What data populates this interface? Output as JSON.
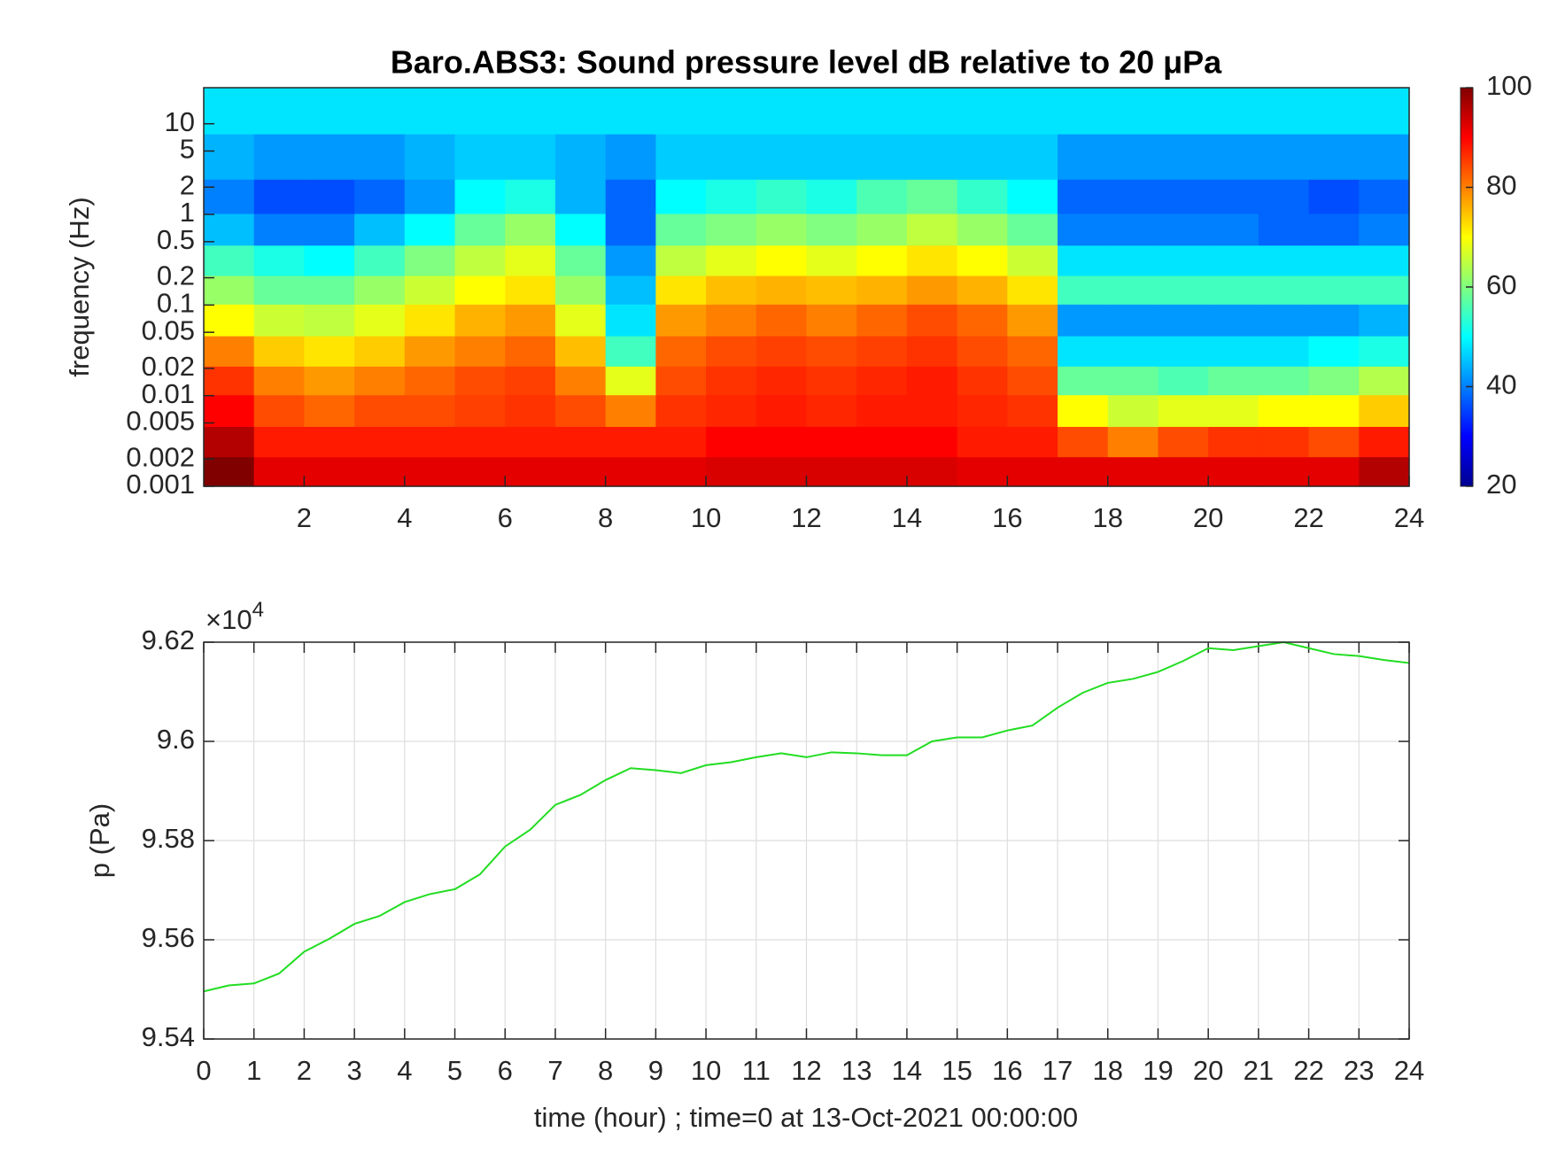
{
  "chart_data": [
    {
      "type": "heatmap",
      "title": "Baro.ABS3: Sound pressure level dB relative to 20 μPa",
      "y_label": "frequency (Hz)",
      "x": [
        0.5,
        1.5,
        2.5,
        3.5,
        4.5,
        5.5,
        6.5,
        7.5,
        8.5,
        9.5,
        10.5,
        11.5,
        12.5,
        13.5,
        14.5,
        15.5,
        16.5,
        17.5,
        18.5,
        19.5,
        20.5,
        21.5,
        22.5,
        23.5
      ],
      "y": [
        0.0015,
        0.003,
        0.007,
        0.015,
        0.03,
        0.07,
        0.15,
        0.3,
        0.7,
        1.5,
        4,
        15
      ],
      "z": [
        [
          100,
          92,
          92,
          92,
          92,
          92,
          92,
          92,
          92,
          92,
          93,
          93,
          93,
          93,
          93,
          92,
          92,
          92,
          92,
          92,
          92,
          92,
          92,
          96
        ],
        [
          96,
          88,
          88,
          88,
          88,
          88,
          88,
          88,
          88,
          88,
          90,
          90,
          90,
          90,
          90,
          88,
          88,
          84,
          80,
          84,
          86,
          86,
          84,
          88
        ],
        [
          90,
          84,
          82,
          84,
          84,
          85,
          86,
          84,
          80,
          86,
          87,
          88,
          87,
          88,
          88,
          87,
          86,
          70,
          66,
          68,
          68,
          70,
          70,
          74
        ],
        [
          86,
          80,
          78,
          80,
          82,
          84,
          85,
          80,
          68,
          84,
          86,
          87,
          86,
          87,
          88,
          86,
          84,
          58,
          58,
          56,
          58,
          58,
          60,
          64
        ],
        [
          80,
          74,
          72,
          74,
          78,
          80,
          82,
          75,
          55,
          82,
          84,
          85,
          84,
          85,
          86,
          84,
          82,
          48,
          48,
          48,
          48,
          48,
          50,
          52
        ],
        [
          70,
          66,
          65,
          68,
          72,
          76,
          78,
          68,
          48,
          78,
          80,
          82,
          80,
          82,
          84,
          82,
          78,
          42,
          42,
          42,
          42,
          42,
          42,
          44
        ],
        [
          62,
          58,
          58,
          62,
          66,
          70,
          72,
          62,
          45,
          72,
          75,
          76,
          75,
          76,
          78,
          76,
          72,
          55,
          55,
          55,
          55,
          55,
          55,
          55
        ],
        [
          55,
          52,
          50,
          55,
          60,
          65,
          68,
          58,
          42,
          65,
          68,
          70,
          68,
          70,
          72,
          70,
          66,
          48,
          48,
          48,
          48,
          48,
          48,
          48
        ],
        [
          45,
          40,
          40,
          45,
          50,
          58,
          62,
          50,
          38,
          58,
          60,
          62,
          60,
          62,
          65,
          62,
          58,
          40,
          40,
          40,
          40,
          38,
          38,
          40
        ],
        [
          40,
          36,
          36,
          38,
          42,
          50,
          52,
          44,
          38,
          50,
          52,
          54,
          52,
          56,
          58,
          54,
          50,
          38,
          38,
          38,
          38,
          38,
          36,
          38
        ],
        [
          44,
          42,
          42,
          42,
          44,
          46,
          46,
          44,
          42,
          46,
          46,
          46,
          46,
          46,
          46,
          46,
          46,
          42,
          42,
          42,
          42,
          42,
          42,
          42
        ],
        [
          48,
          48,
          48,
          48,
          48,
          48,
          48,
          48,
          48,
          48,
          48,
          48,
          48,
          48,
          48,
          48,
          48,
          48,
          48,
          48,
          48,
          48,
          48,
          48
        ]
      ],
      "xlim": [
        0,
        24
      ],
      "xticks": [
        2,
        4,
        6,
        8,
        10,
        12,
        14,
        16,
        18,
        20,
        22,
        24
      ],
      "ylim": [
        0.001,
        25
      ],
      "ylog": true,
      "yticks": [
        0.001,
        0.002,
        0.005,
        0.01,
        0.02,
        0.05,
        0.1,
        0.2,
        0.5,
        1,
        2,
        5,
        10
      ],
      "colormap": "jet",
      "clim": [
        20,
        100
      ],
      "cticks": [
        20,
        40,
        60,
        80,
        100
      ]
    },
    {
      "type": "line",
      "x_label": "time (hour) ; time=0 at 13-Oct-2021 00:00:00",
      "y_label": "p (Pa)",
      "y_multiplier": {
        "base": "×10",
        "exponent": "4"
      },
      "x": [
        0,
        0.5,
        1,
        1.5,
        2,
        2.5,
        3,
        3.5,
        4,
        4.5,
        5,
        5.5,
        6,
        6.5,
        7,
        7.5,
        8,
        8.5,
        9,
        9.5,
        10,
        10.5,
        11,
        11.5,
        12,
        12.5,
        13,
        13.5,
        14,
        14.5,
        15,
        15.5,
        16,
        16.5,
        17,
        17.5,
        18,
        18.5,
        19,
        19.5,
        20,
        20.5,
        21,
        21.5,
        22,
        22.5,
        23,
        23.5,
        24
      ],
      "series": [
        {
          "color": "#22dd22",
          "values": [
            95496,
            95508,
            95512,
            95532,
            95576,
            95602,
            95632,
            95648,
            95676,
            95692,
            95702,
            95732,
            95788,
            95822,
            95872,
            95892,
            95922,
            95946,
            95942,
            95936,
            95952,
            95958,
            95968,
            95976,
            95968,
            95978,
            95976,
            95972,
            95972,
            96000,
            96008,
            96008,
            96022,
            96032,
            96068,
            96098,
            96118,
            96126,
            96140,
            96162,
            96188,
            96184,
            96192,
            96200,
            96188,
            96176,
            96172,
            96164,
            96158
          ]
        }
      ],
      "xlim": [
        0,
        24
      ],
      "xticks": [
        0,
        1,
        2,
        3,
        4,
        5,
        6,
        7,
        8,
        9,
        10,
        11,
        12,
        13,
        14,
        15,
        16,
        17,
        18,
        19,
        20,
        21,
        22,
        23,
        24
      ],
      "ylim": [
        95400,
        96200
      ],
      "yticks": [
        {
          "value": 95400,
          "label": "9.54"
        },
        {
          "value": 95600,
          "label": "9.56"
        },
        {
          "value": 95800,
          "label": "9.58"
        },
        {
          "value": 96000,
          "label": "9.6"
        },
        {
          "value": 96200,
          "label": "9.62"
        }
      ],
      "grid": true
    }
  ]
}
